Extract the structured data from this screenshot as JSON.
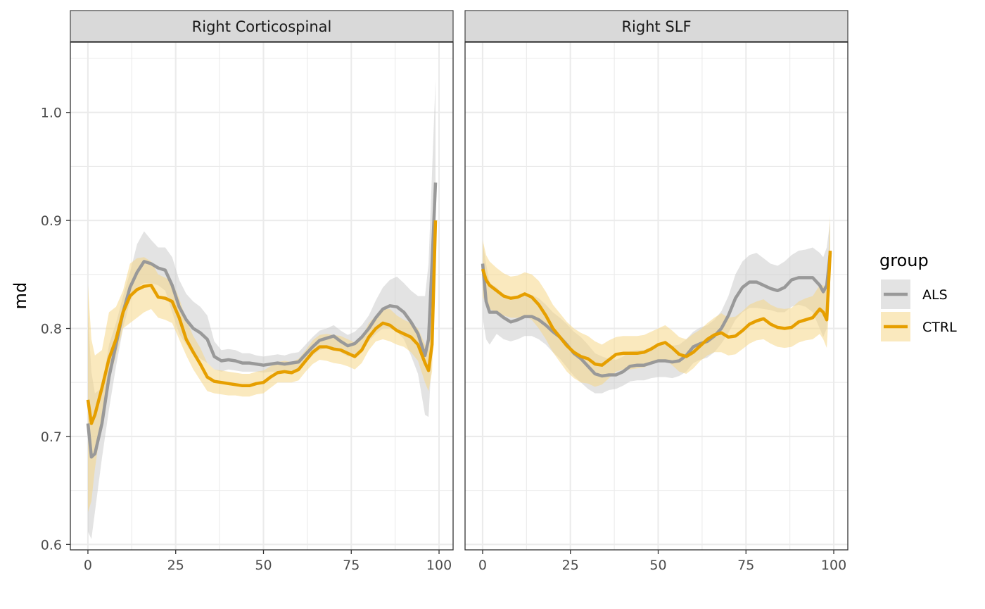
{
  "chart_data": {
    "type": "line",
    "ylabel": "md",
    "ylim": [
      0.595,
      1.065
    ],
    "xlim": [
      -5,
      104
    ],
    "x_ticks": [
      0,
      25,
      50,
      75,
      100
    ],
    "y_ticks": [
      0.6,
      0.7,
      0.8,
      0.9,
      1.0
    ],
    "x_tick_labels": [
      "0",
      "25",
      "50",
      "75",
      "100"
    ],
    "y_tick_labels": [
      "0.6",
      "0.7",
      "0.8",
      "0.9",
      "1.0"
    ],
    "grid": true,
    "legend": {
      "title": "group",
      "position": "right",
      "entries": [
        {
          "label": "ALS",
          "color": "#999999",
          "fill": "#cccccc"
        },
        {
          "label": "CTRL",
          "color": "#e69f00",
          "fill": "#f5d789"
        }
      ]
    },
    "panels": [
      {
        "title": "Right Corticospinal",
        "series": [
          {
            "name": "ALS",
            "x": [
              0,
              1,
              2,
              4,
              6,
              8,
              10,
              12,
              14,
              16,
              18,
              20,
              22,
              24,
              26,
              28,
              30,
              32,
              34,
              36,
              38,
              40,
              42,
              44,
              46,
              48,
              50,
              52,
              54,
              56,
              58,
              60,
              62,
              64,
              66,
              68,
              70,
              72,
              74,
              76,
              78,
              80,
              82,
              84,
              86,
              88,
              90,
              92,
              94,
              96,
              97,
              98,
              99
            ],
            "y": [
              0.712,
              0.681,
              0.684,
              0.712,
              0.755,
              0.785,
              0.815,
              0.838,
              0.852,
              0.862,
              0.86,
              0.856,
              0.854,
              0.84,
              0.82,
              0.808,
              0.8,
              0.796,
              0.79,
              0.774,
              0.77,
              0.771,
              0.77,
              0.768,
              0.768,
              0.767,
              0.766,
              0.767,
              0.768,
              0.767,
              0.768,
              0.769,
              0.776,
              0.783,
              0.789,
              0.791,
              0.793,
              0.788,
              0.784,
              0.786,
              0.792,
              0.8,
              0.81,
              0.818,
              0.821,
              0.82,
              0.815,
              0.806,
              0.795,
              0.775,
              0.79,
              0.86,
              0.935
            ],
            "lower": [
              0.612,
              0.605,
              0.63,
              0.68,
              0.725,
              0.765,
              0.8,
              0.825,
              0.838,
              0.842,
              0.842,
              0.84,
              0.835,
              0.815,
              0.795,
              0.785,
              0.775,
              0.772,
              0.768,
              0.762,
              0.76,
              0.762,
              0.761,
              0.76,
              0.76,
              0.76,
              0.759,
              0.76,
              0.76,
              0.76,
              0.76,
              0.76,
              0.768,
              0.775,
              0.78,
              0.782,
              0.783,
              0.778,
              0.774,
              0.775,
              0.782,
              0.788,
              0.795,
              0.8,
              0.8,
              0.797,
              0.79,
              0.775,
              0.758,
              0.72,
              0.718,
              0.78,
              0.87
            ],
            "upper": [
              0.812,
              0.76,
              0.74,
              0.745,
              0.785,
              0.805,
              0.83,
              0.852,
              0.878,
              0.89,
              0.882,
              0.875,
              0.875,
              0.866,
              0.845,
              0.832,
              0.825,
              0.82,
              0.812,
              0.788,
              0.78,
              0.781,
              0.78,
              0.777,
              0.777,
              0.775,
              0.774,
              0.775,
              0.776,
              0.775,
              0.777,
              0.778,
              0.785,
              0.792,
              0.798,
              0.8,
              0.803,
              0.798,
              0.794,
              0.797,
              0.803,
              0.812,
              0.826,
              0.838,
              0.845,
              0.848,
              0.842,
              0.835,
              0.83,
              0.83,
              0.86,
              0.945,
              1.03
            ]
          },
          {
            "name": "CTRL",
            "x": [
              0,
              1,
              2,
              4,
              6,
              8,
              10,
              12,
              14,
              16,
              18,
              20,
              22,
              24,
              26,
              28,
              30,
              32,
              34,
              36,
              38,
              40,
              42,
              44,
              46,
              48,
              50,
              52,
              54,
              56,
              58,
              60,
              62,
              64,
              66,
              68,
              70,
              72,
              74,
              76,
              78,
              80,
              82,
              84,
              86,
              88,
              90,
              92,
              94,
              96,
              97,
              98,
              99
            ],
            "y": [
              0.734,
              0.712,
              0.72,
              0.745,
              0.772,
              0.79,
              0.815,
              0.83,
              0.836,
              0.839,
              0.84,
              0.829,
              0.828,
              0.825,
              0.81,
              0.79,
              0.778,
              0.767,
              0.755,
              0.751,
              0.75,
              0.749,
              0.748,
              0.747,
              0.747,
              0.749,
              0.75,
              0.755,
              0.759,
              0.76,
              0.759,
              0.762,
              0.77,
              0.778,
              0.783,
              0.783,
              0.781,
              0.78,
              0.777,
              0.774,
              0.78,
              0.792,
              0.8,
              0.805,
              0.803,
              0.798,
              0.795,
              0.792,
              0.785,
              0.768,
              0.761,
              0.785,
              0.9
            ],
            "lower": [
              0.63,
              0.64,
              0.67,
              0.715,
              0.752,
              0.775,
              0.8,
              0.805,
              0.81,
              0.815,
              0.818,
              0.81,
              0.808,
              0.805,
              0.79,
              0.775,
              0.762,
              0.752,
              0.742,
              0.74,
              0.739,
              0.738,
              0.738,
              0.737,
              0.737,
              0.739,
              0.74,
              0.745,
              0.75,
              0.75,
              0.75,
              0.752,
              0.76,
              0.767,
              0.771,
              0.77,
              0.768,
              0.767,
              0.765,
              0.762,
              0.768,
              0.78,
              0.788,
              0.79,
              0.788,
              0.785,
              0.783,
              0.778,
              0.77,
              0.75,
              0.742,
              0.76,
              0.86
            ],
            "upper": [
              0.84,
              0.79,
              0.775,
              0.78,
              0.815,
              0.82,
              0.835,
              0.86,
              0.865,
              0.866,
              0.862,
              0.85,
              0.847,
              0.843,
              0.828,
              0.808,
              0.793,
              0.782,
              0.768,
              0.762,
              0.761,
              0.76,
              0.759,
              0.758,
              0.758,
              0.76,
              0.761,
              0.765,
              0.769,
              0.77,
              0.769,
              0.772,
              0.78,
              0.789,
              0.794,
              0.795,
              0.794,
              0.793,
              0.79,
              0.787,
              0.792,
              0.805,
              0.812,
              0.818,
              0.818,
              0.812,
              0.808,
              0.805,
              0.8,
              0.785,
              0.78,
              0.815,
              0.94
            ]
          }
        ]
      },
      {
        "title": "Right SLF",
        "series": [
          {
            "name": "ALS",
            "x": [
              0,
              1,
              2,
              4,
              6,
              8,
              10,
              12,
              14,
              16,
              18,
              20,
              22,
              24,
              26,
              28,
              30,
              32,
              34,
              36,
              38,
              40,
              42,
              44,
              46,
              48,
              50,
              52,
              54,
              56,
              58,
              60,
              62,
              64,
              66,
              68,
              70,
              72,
              74,
              76,
              78,
              80,
              82,
              84,
              86,
              88,
              90,
              92,
              94,
              96,
              97,
              98,
              99
            ],
            "y": [
              0.86,
              0.825,
              0.815,
              0.815,
              0.81,
              0.806,
              0.808,
              0.811,
              0.811,
              0.808,
              0.803,
              0.797,
              0.792,
              0.785,
              0.777,
              0.772,
              0.765,
              0.758,
              0.756,
              0.757,
              0.757,
              0.76,
              0.765,
              0.766,
              0.766,
              0.768,
              0.77,
              0.77,
              0.769,
              0.77,
              0.775,
              0.783,
              0.786,
              0.788,
              0.793,
              0.8,
              0.812,
              0.828,
              0.838,
              0.843,
              0.843,
              0.84,
              0.837,
              0.835,
              0.838,
              0.845,
              0.847,
              0.847,
              0.847,
              0.84,
              0.834,
              0.84,
              0.87
            ],
            "lower": [
              0.81,
              0.79,
              0.785,
              0.795,
              0.79,
              0.788,
              0.79,
              0.793,
              0.793,
              0.79,
              0.785,
              0.778,
              0.772,
              0.764,
              0.756,
              0.75,
              0.744,
              0.74,
              0.74,
              0.743,
              0.744,
              0.747,
              0.751,
              0.752,
              0.752,
              0.754,
              0.755,
              0.755,
              0.754,
              0.756,
              0.76,
              0.768,
              0.771,
              0.773,
              0.778,
              0.786,
              0.796,
              0.808,
              0.815,
              0.819,
              0.819,
              0.818,
              0.817,
              0.815,
              0.815,
              0.82,
              0.822,
              0.82,
              0.815,
              0.8,
              0.792,
              0.8,
              0.835
            ],
            "upper": [
              0.88,
              0.86,
              0.842,
              0.838,
              0.83,
              0.826,
              0.828,
              0.831,
              0.831,
              0.828,
              0.822,
              0.815,
              0.81,
              0.804,
              0.797,
              0.792,
              0.785,
              0.777,
              0.774,
              0.772,
              0.771,
              0.774,
              0.779,
              0.78,
              0.78,
              0.783,
              0.785,
              0.785,
              0.784,
              0.785,
              0.79,
              0.797,
              0.801,
              0.803,
              0.808,
              0.816,
              0.83,
              0.85,
              0.862,
              0.868,
              0.87,
              0.865,
              0.86,
              0.858,
              0.862,
              0.868,
              0.872,
              0.873,
              0.875,
              0.87,
              0.866,
              0.875,
              0.9
            ]
          },
          {
            "name": "CTRL",
            "x": [
              0,
              1,
              2,
              4,
              6,
              8,
              10,
              12,
              14,
              16,
              18,
              20,
              22,
              24,
              26,
              28,
              30,
              32,
              34,
              36,
              38,
              40,
              42,
              44,
              46,
              48,
              50,
              52,
              54,
              56,
              58,
              60,
              62,
              64,
              66,
              68,
              70,
              72,
              74,
              76,
              78,
              80,
              82,
              84,
              86,
              88,
              90,
              92,
              94,
              96,
              97,
              98,
              99
            ],
            "y": [
              0.855,
              0.845,
              0.84,
              0.835,
              0.83,
              0.828,
              0.829,
              0.832,
              0.829,
              0.822,
              0.812,
              0.8,
              0.792,
              0.784,
              0.778,
              0.774,
              0.772,
              0.767,
              0.766,
              0.771,
              0.776,
              0.777,
              0.777,
              0.777,
              0.778,
              0.781,
              0.785,
              0.787,
              0.782,
              0.776,
              0.774,
              0.778,
              0.784,
              0.79,
              0.794,
              0.796,
              0.792,
              0.793,
              0.798,
              0.804,
              0.807,
              0.809,
              0.804,
              0.801,
              0.8,
              0.801,
              0.806,
              0.808,
              0.81,
              0.818,
              0.815,
              0.808,
              0.872
            ],
            "lower": [
              0.83,
              0.822,
              0.818,
              0.815,
              0.812,
              0.81,
              0.81,
              0.812,
              0.808,
              0.8,
              0.79,
              0.778,
              0.769,
              0.76,
              0.754,
              0.75,
              0.749,
              0.746,
              0.748,
              0.754,
              0.76,
              0.762,
              0.762,
              0.763,
              0.764,
              0.767,
              0.77,
              0.771,
              0.766,
              0.76,
              0.758,
              0.763,
              0.77,
              0.775,
              0.778,
              0.778,
              0.775,
              0.776,
              0.781,
              0.786,
              0.789,
              0.79,
              0.786,
              0.783,
              0.782,
              0.783,
              0.787,
              0.789,
              0.79,
              0.795,
              0.79,
              0.782,
              0.84
            ],
            "upper": [
              0.882,
              0.868,
              0.862,
              0.856,
              0.851,
              0.848,
              0.849,
              0.852,
              0.85,
              0.844,
              0.834,
              0.822,
              0.814,
              0.806,
              0.8,
              0.796,
              0.793,
              0.788,
              0.785,
              0.789,
              0.792,
              0.793,
              0.793,
              0.793,
              0.794,
              0.797,
              0.8,
              0.803,
              0.798,
              0.792,
              0.79,
              0.795,
              0.799,
              0.805,
              0.81,
              0.814,
              0.81,
              0.811,
              0.816,
              0.822,
              0.825,
              0.827,
              0.822,
              0.819,
              0.818,
              0.819,
              0.825,
              0.828,
              0.83,
              0.84,
              0.84,
              0.835,
              0.905
            ]
          }
        ]
      }
    ]
  }
}
